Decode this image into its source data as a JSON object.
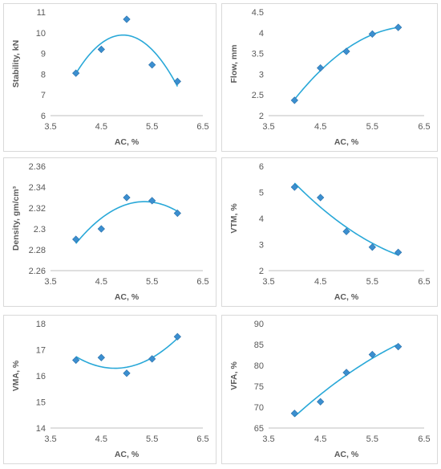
{
  "chart_data": [
    {
      "type": "scatter",
      "xlabel": "AC, %",
      "ylabel": "Stability, kN",
      "xlim": [
        3.5,
        6.5
      ],
      "xticks": [
        3.5,
        4.5,
        5.5,
        6.5
      ],
      "ylim": [
        6,
        11
      ],
      "yticks": [
        6,
        7,
        8,
        9,
        10,
        11
      ],
      "series": [
        {
          "x": [
            4.0,
            4.5,
            5.0,
            5.5,
            6.0
          ],
          "y": [
            8.05,
            9.2,
            10.65,
            8.45,
            7.65
          ]
        }
      ],
      "trend": {
        "type": "poly2",
        "color": "#29a8d8"
      },
      "marker_color": "#3b8fd0"
    },
    {
      "type": "scatter",
      "xlabel": "AC, %",
      "ylabel": "Flow, mm",
      "xlim": [
        3.5,
        6.5
      ],
      "xticks": [
        3.5,
        4.5,
        5.5,
        6.5
      ],
      "ylim": [
        2,
        4.5
      ],
      "yticks": [
        2,
        2.5,
        3,
        3.5,
        4,
        4.5
      ],
      "series": [
        {
          "x": [
            4.0,
            4.5,
            5.0,
            5.5,
            6.0
          ],
          "y": [
            2.37,
            3.15,
            3.55,
            3.97,
            4.13
          ]
        }
      ],
      "trend": {
        "type": "poly2",
        "color": "#29a8d8"
      },
      "marker_color": "#3b8fd0"
    },
    {
      "type": "scatter",
      "xlabel": "AC, %",
      "ylabel": "Density, gm/cm³",
      "xlim": [
        3.5,
        6.5
      ],
      "xticks": [
        3.5,
        4.5,
        5.5,
        6.5
      ],
      "ylim": [
        2.26,
        2.36
      ],
      "yticks": [
        2.26,
        2.28,
        2.3,
        2.32,
        2.34,
        2.36
      ],
      "series": [
        {
          "x": [
            4.0,
            4.5,
            5.0,
            5.5,
            6.0
          ],
          "y": [
            2.29,
            2.3,
            2.33,
            2.327,
            2.315
          ]
        }
      ],
      "trend": {
        "type": "poly2",
        "color": "#29a8d8"
      },
      "marker_color": "#3b8fd0"
    },
    {
      "type": "scatter",
      "xlabel": "AC, %",
      "ylabel": "VTM, %",
      "xlim": [
        3.5,
        6.5
      ],
      "xticks": [
        3.5,
        4.5,
        5.5,
        6.5
      ],
      "ylim": [
        2,
        6
      ],
      "yticks": [
        2,
        3,
        4,
        5,
        6
      ],
      "series": [
        {
          "x": [
            4.0,
            4.5,
            5.0,
            5.5,
            6.0
          ],
          "y": [
            5.2,
            4.8,
            3.5,
            2.9,
            2.7
          ]
        }
      ],
      "trend": {
        "type": "poly2",
        "color": "#29a8d8"
      },
      "marker_color": "#3b8fd0"
    },
    {
      "type": "scatter",
      "xlabel": "AC, %",
      "ylabel": "VMA, %",
      "xlim": [
        3.5,
        6.5
      ],
      "xticks": [
        3.5,
        4.5,
        5.5,
        6.5
      ],
      "ylim": [
        14,
        18
      ],
      "yticks": [
        14,
        15,
        16,
        17,
        18
      ],
      "series": [
        {
          "x": [
            4.0,
            4.5,
            5.0,
            5.5,
            6.0
          ],
          "y": [
            16.6,
            16.7,
            16.1,
            16.65,
            17.5
          ]
        }
      ],
      "trend": {
        "type": "poly2",
        "color": "#29a8d8"
      },
      "marker_color": "#3b8fd0"
    },
    {
      "type": "scatter",
      "xlabel": "AC, %",
      "ylabel": "VFA, %",
      "xlim": [
        3.5,
        6.5
      ],
      "xticks": [
        3.5,
        4.5,
        5.5,
        6.5
      ],
      "ylim": [
        65,
        90
      ],
      "yticks": [
        65,
        70,
        75,
        80,
        85,
        90
      ],
      "series": [
        {
          "x": [
            4.0,
            4.5,
            5.0,
            5.5,
            6.0
          ],
          "y": [
            68.5,
            71.3,
            78.3,
            82.6,
            84.5
          ]
        }
      ],
      "trend": {
        "type": "poly2",
        "color": "#29a8d8"
      },
      "marker_color": "#3b8fd0"
    }
  ]
}
